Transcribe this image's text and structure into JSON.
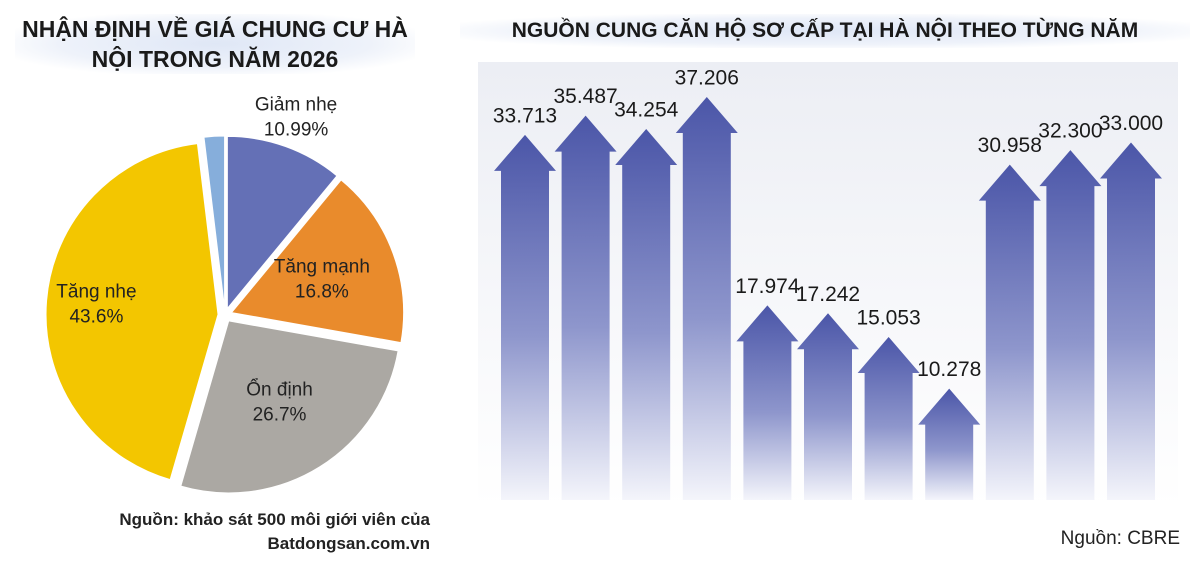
{
  "chart_data": [
    {
      "type": "pie",
      "title": "NHẬN ĐỊNH VỀ GIÁ CHUNG CƯ HÀ NỘI TRONG NĂM 2026",
      "categories": [
        "Giảm nhẹ",
        "Tăng mạnh",
        "Ổn định",
        "Tăng nhẹ",
        null
      ],
      "values": [
        10.99,
        16.8,
        26.7,
        43.6,
        1.91
      ],
      "value_labels": [
        "10.99%",
        "16.8%",
        "26.7%",
        "43.6%",
        null
      ],
      "colors": [
        "#6470b6",
        "#e98b2c",
        "#aba8a3",
        "#f3c600",
        "#86aedb"
      ],
      "source": "Nguồn: khảo sát 500 môi giới viên của Batdongsan.com.vn"
    },
    {
      "type": "bar",
      "title": "NGUỒN CUNG CĂN HỘ SƠ CẤP TẠI HÀ NỘI THEO TỪNG NĂM",
      "categories": [
        null,
        null,
        null,
        null,
        null,
        null,
        null,
        null,
        null,
        null,
        null
      ],
      "values": [
        33713,
        35487,
        34254,
        37206,
        17974,
        17242,
        15053,
        10278,
        30958,
        32300,
        33000
      ],
      "value_labels": [
        "33.713",
        "35.487",
        "34.254",
        "37.206",
        "17.974",
        "17.242",
        "15.053",
        "10.278",
        "30.958",
        "32.300",
        "33.000"
      ],
      "color": "#4b56a8",
      "source": "Nguồn: CBRE"
    }
  ]
}
